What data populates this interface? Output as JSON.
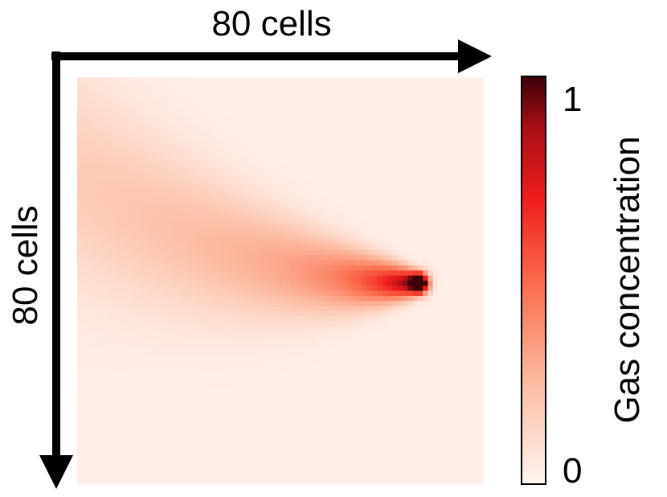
{
  "chart_data": {
    "type": "heatmap",
    "grid": {
      "rows": 80,
      "cols": 80
    },
    "x_axis_label": "80 cells",
    "y_axis_label": "80 cells",
    "colorbar": {
      "label": "Gas concentration",
      "min_label": "0",
      "max_label": "1",
      "range": [
        0,
        1
      ],
      "colors": [
        "#fff5f0",
        "#fcbba1",
        "#fb6a4a",
        "#ef1c1c",
        "#a50f15",
        "#3b0008"
      ]
    },
    "source": {
      "col": 67,
      "row": 40,
      "peak_value": 1.0
    },
    "plume_direction": "upwind-left",
    "grid_lines": false,
    "legend_position": "right"
  }
}
